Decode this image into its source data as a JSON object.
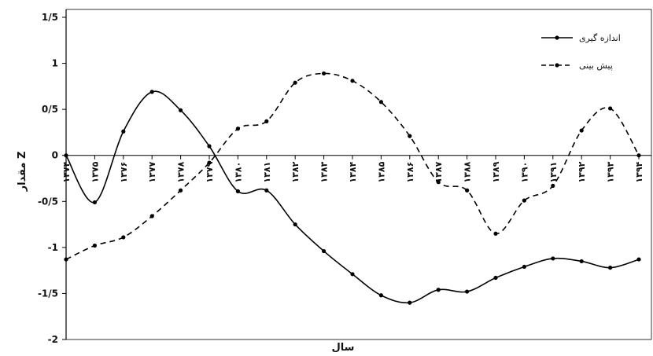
{
  "chart_data": {
    "type": "line",
    "xlabel": "سال",
    "ylabel": "مقدار Z",
    "ylim": [
      -2,
      1.5
    ],
    "yticks": [
      {
        "value": 1.5,
        "label": "1/5"
      },
      {
        "value": 1,
        "label": "1"
      },
      {
        "value": 0.5,
        "label": "0/5"
      },
      {
        "value": 0,
        "label": "0"
      },
      {
        "value": -0.5,
        "label": "-0/5"
      },
      {
        "value": -1,
        "label": "-1"
      },
      {
        "value": -1.5,
        "label": "-1/5"
      },
      {
        "value": -2,
        "label": "-2"
      }
    ],
    "categories": [
      "1374",
      "1375",
      "1376",
      "1377",
      "1378",
      "1379",
      "1380",
      "1381",
      "1382",
      "1383",
      "1384",
      "1385",
      "1386",
      "1387",
      "1388",
      "1389",
      "1390",
      "1391",
      "1392",
      "1393",
      "1394"
    ],
    "x_tick_labels": [
      "۱۳۷۴",
      "۱۳۷۵",
      "۱۳۷۶",
      "۱۳۷۷",
      "۱۳۷۸",
      "۱۳۷۹",
      "۱۳۸۰",
      "۱۳۸۱",
      "۱۳۸۲",
      "۱۳۸۳",
      "۱۳۸۴",
      "۱۳۸۵",
      "۱۳۸۶",
      "۱۳۸۷",
      "۱۳۸۸",
      "۱۳۸۹",
      "۱۳۹۰",
      "۱۳۹۱",
      "۱۳۹۲",
      "۱۳۹۳",
      "۱۳۹۴"
    ],
    "series": [
      {
        "name": "اندازه گیری",
        "style": "solid",
        "color": "#000000",
        "values": [
          0,
          -0.51,
          0.26,
          0.69,
          0.49,
          0.1,
          -0.39,
          -0.38,
          -0.75,
          -1.04,
          -1.29,
          -1.52,
          -1.6,
          -1.46,
          -1.48,
          -1.33,
          -1.21,
          -1.12,
          -1.15,
          -1.22,
          -1.13
        ]
      },
      {
        "name": "پیش بینی",
        "style": "dashed",
        "color": "#000000",
        "values": [
          -1.13,
          -0.98,
          -0.89,
          -0.66,
          -0.38,
          -0.08,
          0.29,
          0.37,
          0.79,
          0.89,
          0.81,
          0.58,
          0.21,
          -0.29,
          -0.38,
          -0.85,
          -0.49,
          -0.33,
          0.27,
          0.51,
          0
        ]
      }
    ],
    "grid": false,
    "legend_position": "top-right"
  }
}
